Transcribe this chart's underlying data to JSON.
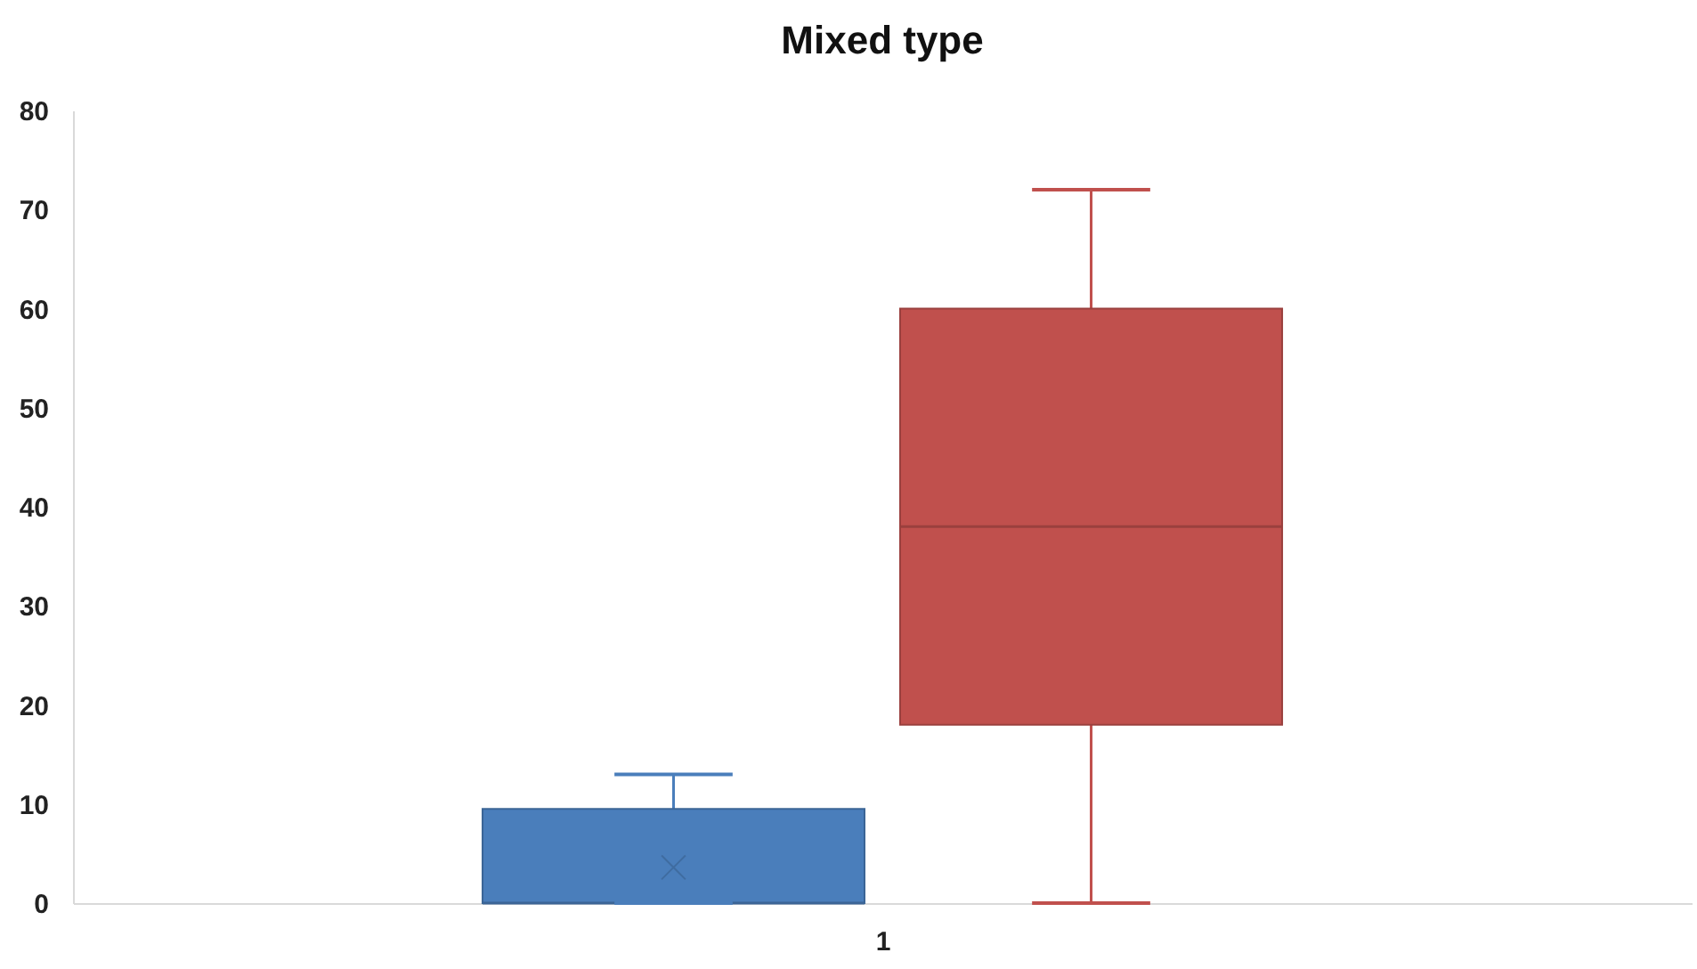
{
  "chart_data": {
    "type": "box",
    "title": "Mixed type",
    "categories": [
      "1"
    ],
    "ylim": [
      0,
      80
    ],
    "yticks": [
      0,
      10,
      20,
      30,
      40,
      50,
      60,
      70,
      80
    ],
    "series": [
      {
        "color": "#4a7ebb",
        "boxes": [
          {
            "low": 0,
            "q1": 0,
            "median": 0,
            "q3": 9.5,
            "high": 13,
            "mean": 3.6
          }
        ]
      },
      {
        "color": "#c0504d",
        "boxes": [
          {
            "low": 0,
            "q1": 18,
            "median": 38,
            "q3": 60,
            "high": 72
          }
        ]
      }
    ]
  }
}
